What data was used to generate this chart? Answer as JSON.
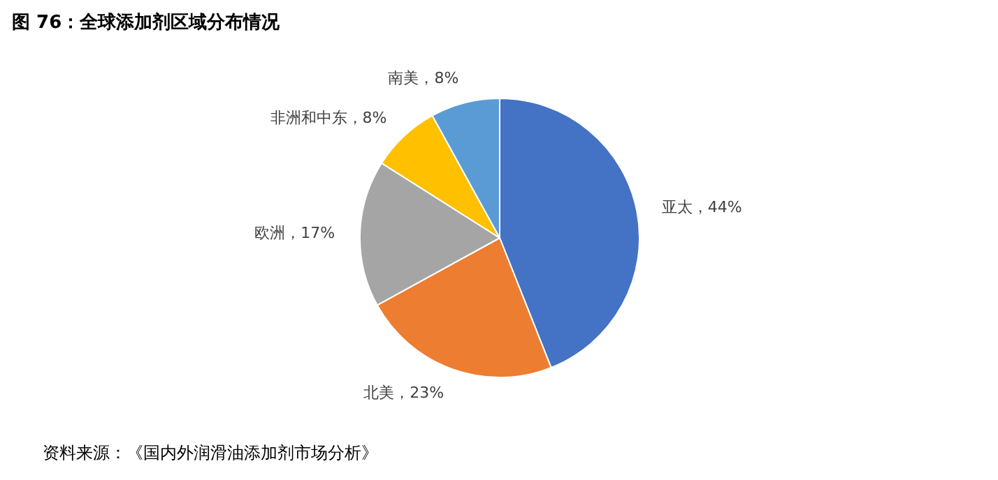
{
  "chart_data": {
    "type": "pie",
    "title": "图 76：全球添加剂区域分布情况",
    "categories": [
      "亚太",
      "北美",
      "欧洲",
      "非洲和中东",
      "南美"
    ],
    "values": [
      44,
      23,
      17,
      8,
      8
    ],
    "colors": [
      "#4472c4",
      "#ed7d31",
      "#a5a5a5",
      "#ffc000",
      "#5b9bd5"
    ],
    "value_labels": [
      "，44%",
      "，23%",
      "，17%",
      "，8%",
      "，8%"
    ],
    "annotations": [
      "资料来源：《国内外润滑油添加剂市场分析》"
    ]
  }
}
